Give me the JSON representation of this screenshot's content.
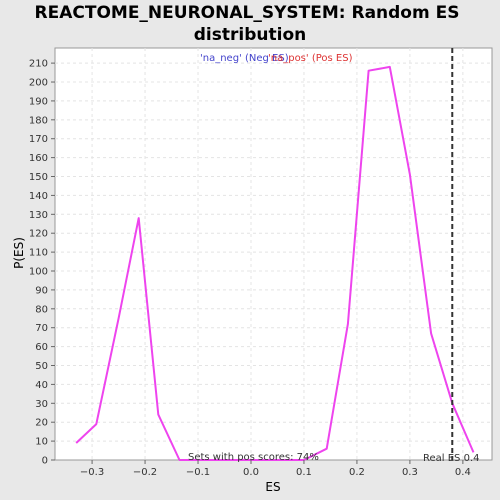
{
  "chart_data": {
    "type": "line",
    "title_line1": "REACTOME_NEURONAL_SYSTEM: Random ES",
    "title_line2": "distribution",
    "xlabel": "ES",
    "ylabel": "P(ES)",
    "xlim": [
      -0.37,
      0.455
    ],
    "ylim": [
      0,
      218
    ],
    "xticks": [
      -0.3,
      -0.2,
      -0.1,
      0.0,
      0.1,
      0.2,
      0.3,
      0.4
    ],
    "xtick_labels": [
      "−0.3",
      "−0.2",
      "−0.1",
      "0.0",
      "0.1",
      "0.2",
      "0.3",
      "0.4"
    ],
    "yticks": [
      0,
      10,
      20,
      30,
      40,
      50,
      60,
      70,
      80,
      90,
      100,
      110,
      120,
      130,
      140,
      150,
      160,
      170,
      180,
      190,
      200,
      210
    ],
    "grid": true,
    "series": [
      {
        "name": "'na_pos' (Pos ES)",
        "color": "#ee44ee",
        "x": [
          -0.33,
          -0.292,
          -0.25,
          -0.212,
          -0.175,
          -0.135,
          -0.1,
          0.0,
          0.1,
          0.143,
          0.183,
          0.222,
          0.262,
          0.3,
          0.34,
          0.38,
          0.42
        ],
        "y": [
          9,
          19,
          75,
          128,
          24,
          0,
          0,
          0,
          0,
          6,
          72,
          206,
          208,
          151,
          67,
          30,
          4
        ]
      }
    ],
    "legend": [
      {
        "label": "'na_neg' (Neg ES)",
        "color": "#4444cc"
      },
      {
        "label": "'na_pos' (Pos ES)",
        "color": "#dd3333"
      }
    ],
    "legend_position": "top-center",
    "real_es": 0.38,
    "real_es_label": "Real ES 0.4",
    "annotation": "Sets with pos scores: 74%"
  }
}
